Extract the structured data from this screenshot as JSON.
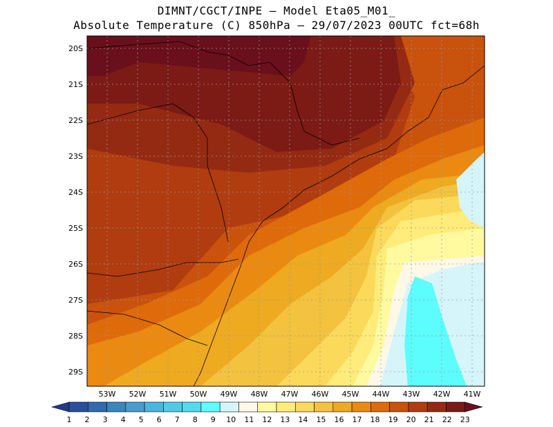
{
  "title": {
    "line1": "DIMNT/CGCT/INPE –  Model Eta05_M01_",
    "line2": "Absolute Temperature (C) 850hPa –  29/07/2023 00UTC fct=68h"
  },
  "map": {
    "lat_labels": [
      "20S",
      "21S",
      "22S",
      "23S",
      "24S",
      "25S",
      "26S",
      "27S",
      "28S",
      "29S"
    ],
    "lon_labels": [
      "53W",
      "52W",
      "51W",
      "50W",
      "49W",
      "48W",
      "47W",
      "46W",
      "45W",
      "44W",
      "43W",
      "42W",
      "41W"
    ]
  },
  "colorbar": {
    "labels": [
      "1",
      "2",
      "3",
      "4",
      "5",
      "6",
      "7",
      "8",
      "9",
      "10",
      "11",
      "12",
      "13",
      "14",
      "15",
      "16",
      "17",
      "18",
      "19",
      "20",
      "21",
      "22",
      "23"
    ],
    "colors": [
      "#1f3a8c",
      "#2a4f9e",
      "#2f6aac",
      "#3a86bd",
      "#4a9ccd",
      "#4bb6dd",
      "#4fcbe8",
      "#50dcef",
      "#5cfdfc",
      "#d6f5fb",
      "#fff8e6",
      "#fffaa0",
      "#ffec7a",
      "#fbd95a",
      "#f3c23e",
      "#eeaa20",
      "#ea8a10",
      "#de6a0a",
      "#c9520c",
      "#b03c0f",
      "#952a12",
      "#7c1a15",
      "#6a0f1c"
    ]
  }
}
